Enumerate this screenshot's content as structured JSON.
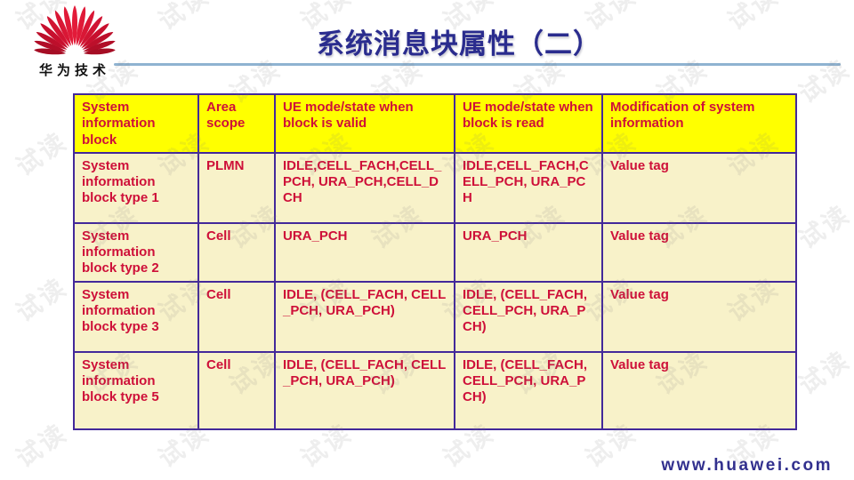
{
  "branding": {
    "logo_text": "华为技术",
    "website": "www.huawei.com"
  },
  "slide": {
    "title": "系统消息块属性（二）"
  },
  "watermark": {
    "text": "试读"
  },
  "colors": {
    "header_bg": "#FFFF00",
    "body_bg": "#F8F2C9",
    "table_border": "#43299A",
    "table_text": "#CE1039",
    "title_text": "#2A2C8E",
    "divider": "#8FB3D1",
    "logo_red": "#C8102E"
  },
  "table": {
    "headers": [
      "System information block",
      "Area scope",
      "UE mode/state when block is valid",
      "UE mode/state when block is read",
      "Modification of system information"
    ],
    "rows": [
      [
        "System information block type 1",
        "PLMN",
        "IDLE,CELL_FACH,CELL_PCH, URA_PCH,CELL_DCH",
        "IDLE,CELL_FACH,CELL_PCH, URA_PCH",
        "Value tag"
      ],
      [
        "System information block type 2",
        "Cell",
        "URA_PCH",
        "URA_PCH",
        "Value tag"
      ],
      [
        "System information block type 3",
        "Cell",
        "IDLE, (CELL_FACH, CELL_PCH, URA_PCH)",
        "IDLE, (CELL_FACH, CELL_PCH, URA_PCH)",
        "Value tag"
      ],
      [
        "System information block type 5",
        "Cell",
        "IDLE, (CELL_FACH, CELL_PCH, URA_PCH)",
        "IDLE, (CELL_FACH, CELL_PCH, URA_PCH)",
        "Value tag"
      ]
    ]
  }
}
